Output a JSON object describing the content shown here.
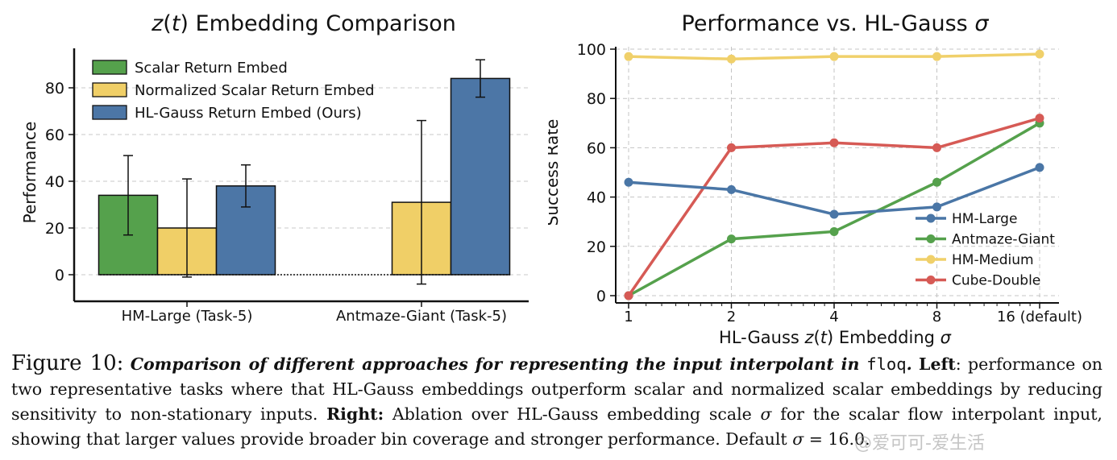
{
  "chart_data": [
    {
      "type": "bar",
      "title": "z(t) Embedding Comparison",
      "title_parts": {
        "italic": "z",
        "open": "(",
        "var": "t",
        "rest": ") Embedding Comparison"
      },
      "xlabel": "",
      "ylabel": "Performance",
      "ylim": [
        -8,
        96
      ],
      "yticks": [
        0,
        20,
        40,
        60,
        80
      ],
      "categories": [
        "HM-Large (Task-5)",
        "Antmaze-Giant (Task-5)"
      ],
      "series": [
        {
          "name": "Scalar Return Embed",
          "color": "#55a14c",
          "values": [
            34,
            0
          ],
          "err_low": [
            17,
            0
          ],
          "err_high": [
            51,
            0
          ]
        },
        {
          "name": "Normalized Scalar Return Embed",
          "color": "#f0cf67",
          "values": [
            20,
            31
          ],
          "err_low": [
            -1,
            -4
          ],
          "err_high": [
            41,
            66
          ]
        },
        {
          "name": "HL-Gauss Return Embed (Ours)",
          "color": "#4c76a6",
          "values": [
            38,
            84
          ],
          "err_low": [
            29,
            76
          ],
          "err_high": [
            47,
            92
          ]
        }
      ],
      "grid": "y-dashed",
      "legend": "top-left"
    },
    {
      "type": "line",
      "title": "Performance vs. HL-Gauss σ",
      "title_parts": {
        "text": "Performance vs. HL-Gauss ",
        "italic": "σ"
      },
      "xlabel": "HL-Gauss z(t) Embedding σ",
      "xlabel_parts": {
        "pre": "HL-Gauss ",
        "italic1": "z",
        "open": "(",
        "var": "t",
        "mid": ") Embedding ",
        "italic2": "σ"
      },
      "ylabel": "Success Rate",
      "x": [
        1,
        2,
        4,
        8,
        16
      ],
      "xticklabels": [
        "1",
        "2",
        "4",
        "8",
        "16 (default)"
      ],
      "xscale": "log2",
      "ylim": [
        0,
        100
      ],
      "yticks": [
        0,
        20,
        40,
        60,
        80,
        100
      ],
      "series": [
        {
          "name": "HM-Large",
          "color": "#4a76a6",
          "values": [
            46,
            43,
            33,
            36,
            52
          ]
        },
        {
          "name": "Antmaze-Giant",
          "color": "#55a14c",
          "values": [
            0,
            23,
            26,
            46,
            70
          ]
        },
        {
          "name": "HM-Medium",
          "color": "#f0d06a",
          "values": [
            97,
            96,
            97,
            97,
            98
          ]
        },
        {
          "name": "Cube-Double",
          "color": "#d65a55",
          "values": [
            0,
            60,
            62,
            60,
            72
          ]
        }
      ],
      "grid": "both-dashed",
      "legend": "bottom-right"
    }
  ],
  "caption": {
    "label_word": "Figure",
    "label_num": "10:",
    "bold_italic_1": "Comparison of different approaches for representing the input interpolant in",
    "mono": "floq",
    "bold_italic_end": ".",
    "left_label": "Left",
    "left_text": ": performance on two representative tasks where that HL-Gauss embeddings outperform scalar and normalized scalar embeddings by reducing sensitivity to non-stationary inputs.",
    "right_label": "Right:",
    "right_text_1": "Ablation over HL-Gauss embedding scale",
    "sigma": "σ",
    "right_text_2": "for the scalar flow interpolant input, showing that larger values provide broader bin coverage and stronger performance. Default",
    "default_eq": "= 16.0."
  },
  "watermark": "@爱可可-爱生活"
}
